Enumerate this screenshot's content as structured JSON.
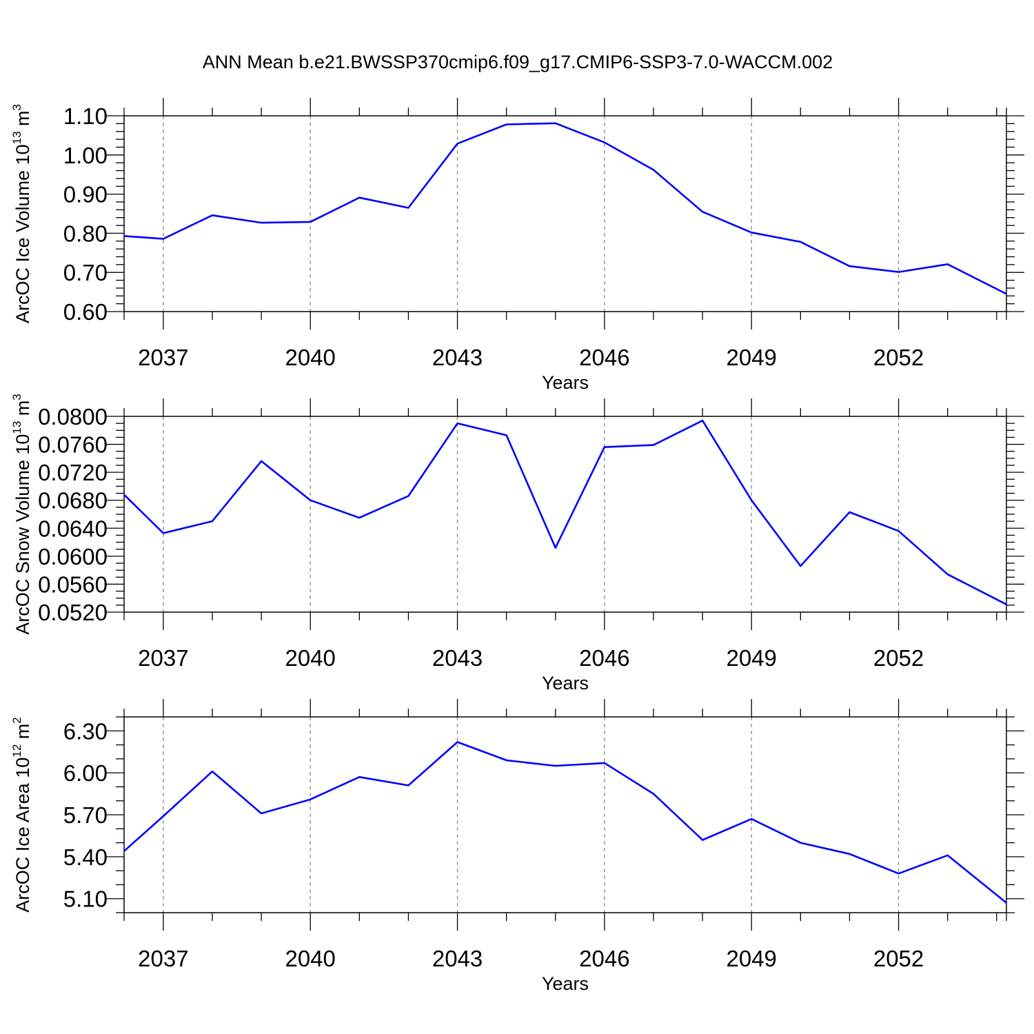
{
  "colors": {
    "series": "#0000ff",
    "axis": "#000000",
    "grid": "#888888"
  },
  "chart_data": [
    {
      "type": "line",
      "title": "ANN Mean b.e21.BWSSP370cmip6.f09_g17.CMIP6-SSP3-7.0-WACCM.002",
      "ylabel": {
        "main": "ArcOC Ice Volume 10",
        "exp": "13",
        "unit": " m",
        "unit_exp": "3"
      },
      "xlabel": "Years",
      "xlim": [
        2036.2,
        2054.2
      ],
      "ylim": [
        0.6,
        1.1
      ],
      "yticks": [
        0.6,
        0.7,
        0.8,
        0.9,
        1.0,
        1.1
      ],
      "ytick_labels": [
        "0.60",
        "0.70",
        "0.80",
        "0.90",
        "1.00",
        "1.10"
      ],
      "yminor_step": 0.02,
      "xticks": [
        2037,
        2040,
        2043,
        2046,
        2049,
        2052
      ],
      "xtick_labels": [
        "2037",
        "2040",
        "2043",
        "2046",
        "2049",
        "2052"
      ],
      "x": [
        2036.2,
        2037,
        2038,
        2039,
        2040,
        2041,
        2042,
        2043,
        2044,
        2045,
        2046,
        2047,
        2048,
        2049,
        2050,
        2051,
        2052,
        2053,
        2054.2
      ],
      "series": [
        {
          "name": "ArcOC Ice Volume",
          "values": [
            0.793,
            0.786,
            0.846,
            0.827,
            0.829,
            0.891,
            0.865,
            1.029,
            1.078,
            1.081,
            1.032,
            0.962,
            0.855,
            0.802,
            0.778,
            0.716,
            0.701,
            0.721,
            0.645
          ]
        }
      ]
    },
    {
      "type": "line",
      "ylabel": {
        "main": "ArcOC Snow Volume 10",
        "exp": "13",
        "unit": " m",
        "unit_exp": "3"
      },
      "xlabel": "Years",
      "xlim": [
        2036.2,
        2054.2
      ],
      "ylim": [
        0.052,
        0.08
      ],
      "yticks": [
        0.052,
        0.056,
        0.06,
        0.064,
        0.068,
        0.072,
        0.076,
        0.08
      ],
      "ytick_labels": [
        "0.0520",
        "0.0560",
        "0.0600",
        "0.0640",
        "0.0680",
        "0.0720",
        "0.0760",
        "0.0800"
      ],
      "yminor_step": 0.001,
      "xticks": [
        2037,
        2040,
        2043,
        2046,
        2049,
        2052
      ],
      "xtick_labels": [
        "2037",
        "2040",
        "2043",
        "2046",
        "2049",
        "2052"
      ],
      "x": [
        2036.2,
        2037,
        2038,
        2039,
        2040,
        2041,
        2042,
        2043,
        2044,
        2045,
        2046,
        2047,
        2048,
        2049,
        2050,
        2051,
        2052,
        2053,
        2054.2
      ],
      "series": [
        {
          "name": "ArcOC Snow Volume",
          "values": [
            0.0688,
            0.0633,
            0.065,
            0.0736,
            0.068,
            0.0655,
            0.0686,
            0.079,
            0.0773,
            0.0612,
            0.0756,
            0.0759,
            0.0794,
            0.068,
            0.0586,
            0.0663,
            0.0636,
            0.0574,
            0.0531
          ]
        }
      ]
    },
    {
      "type": "line",
      "ylabel": {
        "main": "ArcOC Ice Area 10",
        "exp": "12",
        "unit": " m",
        "unit_exp": "2"
      },
      "xlabel": "Years",
      "xlim": [
        2036.2,
        2054.2
      ],
      "ylim": [
        5.0,
        6.4
      ],
      "yticks": [
        5.1,
        5.4,
        5.7,
        6.0,
        6.3
      ],
      "ytick_labels": [
        "5.10",
        "5.40",
        "5.70",
        "6.00",
        "6.30"
      ],
      "yminor_step": 0.1,
      "xticks": [
        2037,
        2040,
        2043,
        2046,
        2049,
        2052
      ],
      "xtick_labels": [
        "2037",
        "2040",
        "2043",
        "2046",
        "2049",
        "2052"
      ],
      "x": [
        2036.2,
        2037,
        2038,
        2039,
        2040,
        2041,
        2042,
        2043,
        2044,
        2045,
        2046,
        2047,
        2048,
        2049,
        2050,
        2051,
        2052,
        2053,
        2054.2
      ],
      "series": [
        {
          "name": "ArcOC Ice Area",
          "values": [
            5.44,
            5.69,
            6.01,
            5.71,
            5.81,
            5.97,
            5.91,
            6.22,
            6.09,
            6.05,
            6.07,
            5.85,
            5.52,
            5.67,
            5.5,
            5.42,
            5.28,
            5.41,
            5.07
          ]
        }
      ]
    }
  ]
}
